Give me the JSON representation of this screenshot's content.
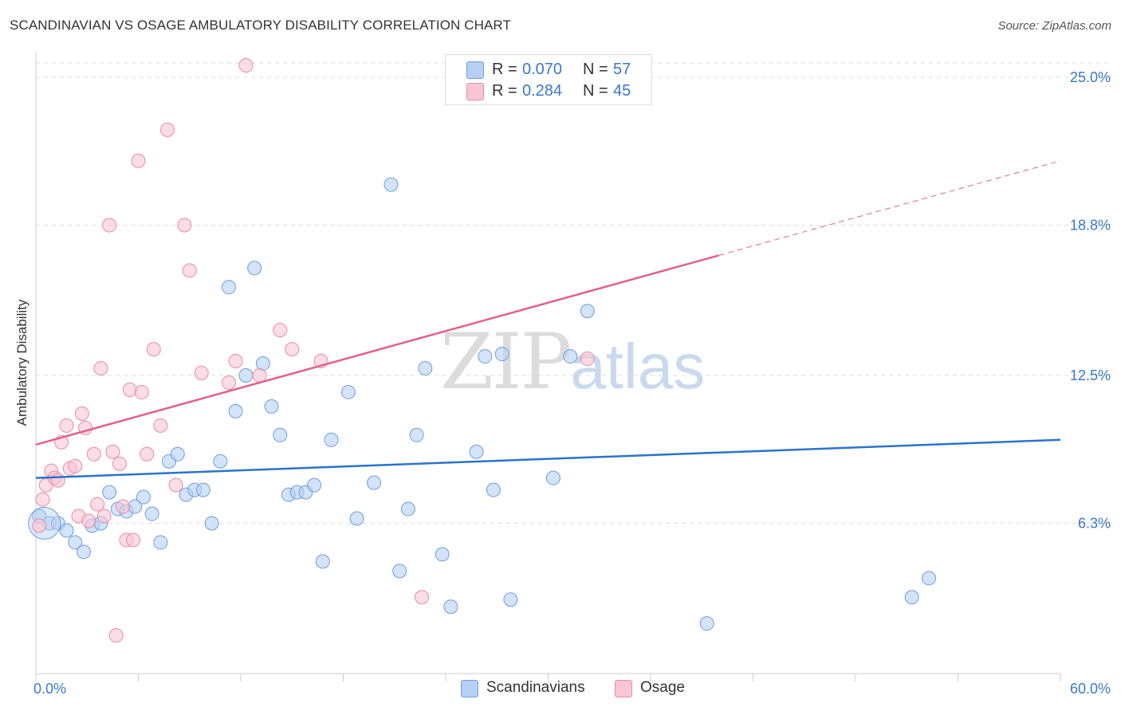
{
  "title": "SCANDINAVIAN VS OSAGE AMBULATORY DISABILITY CORRELATION CHART",
  "source": "Source: ZipAtlas.com",
  "watermark": {
    "part1": "ZIP",
    "part2": "atlas"
  },
  "colors": {
    "blue_fill": "#b6d0f3",
    "blue_stroke": "#6e9fdc",
    "blue_line": "#2b73cc",
    "pink_fill": "#f8c6d4",
    "pink_stroke": "#e98aa8",
    "pink_line": "#e0618b",
    "tick_text": "#3a78c9",
    "grid": "#dddddd"
  },
  "legend": {
    "rows": [
      {
        "r_label": "R =",
        "r_value": "0.070",
        "n_label": "N =",
        "n_value": "57",
        "color": "#b6d0f3"
      },
      {
        "r_label": "R =",
        "r_value": "0.284",
        "n_label": "N =",
        "n_value": "45",
        "color": "#f8c6d4"
      }
    ]
  },
  "bottom_legend": {
    "blue": "Scandinavians",
    "pink": "Osage"
  },
  "chart_data": {
    "type": "scatter",
    "title": "SCANDINAVIAN VS OSAGE AMBULATORY DISABILITY CORRELATION CHART",
    "xlabel": "",
    "ylabel": "Ambulatory Disability",
    "xlim": [
      0,
      60
    ],
    "ylim": [
      0,
      25.6
    ],
    "x_tick_labels": [
      {
        "value": 0,
        "label": "0.0%"
      },
      {
        "value": 60,
        "label": "60.0%"
      }
    ],
    "y_tick_labels": [
      {
        "value": 6.3,
        "label": "6.3%"
      },
      {
        "value": 12.5,
        "label": "12.5%"
      },
      {
        "value": 18.8,
        "label": "18.8%"
      },
      {
        "value": 25.0,
        "label": "25.0%"
      }
    ],
    "grid": true,
    "legend_position": "top-center",
    "series": [
      {
        "name": "Scandinavians",
        "color": "#b6d0f3",
        "trend": {
          "x": [
            0,
            60
          ],
          "y": [
            8.2,
            9.8
          ],
          "dashed_from": null
        },
        "points": [
          [
            0.2,
            6.6
          ],
          [
            0.8,
            6.3
          ],
          [
            1.3,
            6.3
          ],
          [
            1.8,
            6.0
          ],
          [
            2.3,
            5.5
          ],
          [
            2.8,
            5.1
          ],
          [
            3.3,
            6.2
          ],
          [
            3.8,
            6.3
          ],
          [
            4.3,
            7.6
          ],
          [
            4.8,
            6.9
          ],
          [
            5.3,
            6.8
          ],
          [
            5.8,
            7.0
          ],
          [
            6.3,
            7.4
          ],
          [
            6.8,
            6.7
          ],
          [
            7.3,
            5.5
          ],
          [
            7.8,
            8.9
          ],
          [
            8.3,
            9.2
          ],
          [
            8.8,
            7.5
          ],
          [
            9.3,
            7.7
          ],
          [
            9.8,
            7.7
          ],
          [
            10.3,
            6.3
          ],
          [
            10.8,
            8.9
          ],
          [
            11.3,
            16.2
          ],
          [
            11.7,
            11.0
          ],
          [
            12.3,
            12.5
          ],
          [
            12.8,
            17.0
          ],
          [
            13.3,
            13.0
          ],
          [
            13.8,
            11.2
          ],
          [
            14.3,
            10.0
          ],
          [
            14.8,
            7.5
          ],
          [
            15.3,
            7.6
          ],
          [
            15.8,
            7.6
          ],
          [
            16.3,
            7.9
          ],
          [
            16.8,
            4.7
          ],
          [
            17.3,
            9.8
          ],
          [
            18.3,
            11.8
          ],
          [
            18.8,
            6.5
          ],
          [
            19.8,
            8.0
          ],
          [
            20.8,
            20.5
          ],
          [
            21.3,
            4.3
          ],
          [
            21.8,
            6.9
          ],
          [
            22.3,
            10.0
          ],
          [
            22.8,
            12.8
          ],
          [
            23.8,
            5.0
          ],
          [
            24.3,
            2.8
          ],
          [
            25.8,
            9.3
          ],
          [
            26.3,
            13.3
          ],
          [
            26.8,
            7.7
          ],
          [
            27.3,
            13.4
          ],
          [
            27.8,
            3.1
          ],
          [
            30.3,
            8.2
          ],
          [
            31.3,
            13.3
          ],
          [
            32.3,
            15.2
          ],
          [
            39.3,
            2.1
          ],
          [
            51.3,
            3.2
          ],
          [
            52.3,
            4.0
          ],
          [
            0.5,
            6.3
          ]
        ]
      },
      {
        "name": "Osage",
        "color": "#f8c6d4",
        "trend": {
          "x": [
            0,
            60
          ],
          "y": [
            9.6,
            21.5
          ],
          "dashed_from": 40
        },
        "points": [
          [
            0.2,
            6.2
          ],
          [
            0.4,
            7.3
          ],
          [
            0.6,
            7.9
          ],
          [
            0.9,
            8.5
          ],
          [
            1.1,
            8.2
          ],
          [
            1.3,
            8.1
          ],
          [
            1.5,
            9.7
          ],
          [
            1.8,
            10.4
          ],
          [
            2.0,
            8.6
          ],
          [
            2.3,
            8.7
          ],
          [
            2.5,
            6.6
          ],
          [
            2.7,
            10.9
          ],
          [
            2.9,
            10.3
          ],
          [
            3.1,
            6.4
          ],
          [
            3.4,
            9.2
          ],
          [
            3.6,
            7.1
          ],
          [
            3.8,
            12.8
          ],
          [
            4.0,
            6.6
          ],
          [
            4.3,
            18.8
          ],
          [
            4.5,
            9.3
          ],
          [
            4.7,
            1.6
          ],
          [
            4.9,
            8.8
          ],
          [
            5.1,
            7.0
          ],
          [
            5.3,
            5.6
          ],
          [
            5.5,
            11.9
          ],
          [
            5.7,
            5.6
          ],
          [
            6.0,
            21.5
          ],
          [
            6.2,
            11.8
          ],
          [
            6.5,
            9.2
          ],
          [
            6.9,
            13.6
          ],
          [
            7.3,
            10.4
          ],
          [
            7.7,
            22.8
          ],
          [
            8.2,
            7.9
          ],
          [
            8.7,
            18.8
          ],
          [
            9.0,
            16.9
          ],
          [
            9.7,
            12.6
          ],
          [
            11.3,
            12.2
          ],
          [
            11.7,
            13.1
          ],
          [
            12.3,
            25.5
          ],
          [
            13.1,
            12.5
          ],
          [
            14.3,
            14.4
          ],
          [
            15.0,
            13.6
          ],
          [
            16.7,
            13.1
          ],
          [
            22.6,
            3.2
          ],
          [
            32.3,
            13.2
          ]
        ]
      }
    ]
  }
}
